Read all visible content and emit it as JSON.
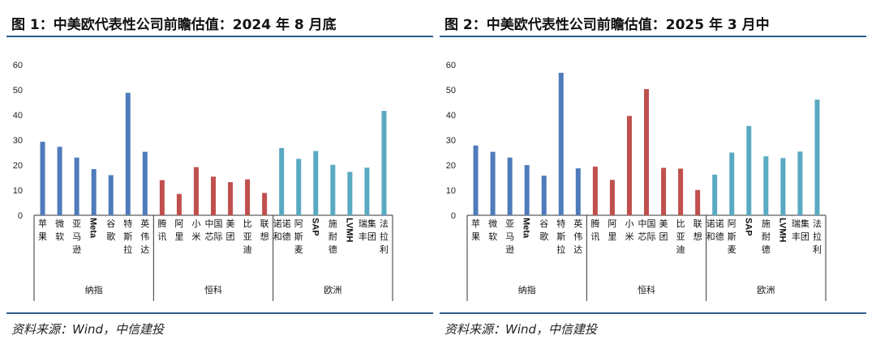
{
  "panels": [
    {
      "title": "图 1：中美欧代表性公司前瞻估值：2024 年 8 月底",
      "source": "资料来源：Wind，中信建投"
    },
    {
      "title": "图 2：中美欧代表性公司前瞻估值：2025 年 3 月中",
      "source": "资料来源：Wind，中信建投"
    }
  ],
  "chart_data": [
    {
      "type": "bar",
      "title": "图 1：中美欧代表性公司前瞻估值：2024 年 8 月底",
      "ylim": [
        0,
        60
      ],
      "yticks": [
        0,
        10,
        20,
        30,
        40,
        50,
        60
      ],
      "categories": [
        "苹果",
        "微软",
        "亚马逊",
        "Meta",
        "谷歌",
        "特斯拉",
        "英伟达",
        "腾讯",
        "阿里",
        "小米",
        "中芯国际",
        "美团",
        "比亚迪",
        "联想",
        "诺和诺德",
        "阿斯麦",
        "SAP",
        "施耐德",
        "LVMH",
        "瑞丰集团",
        "法拉利"
      ],
      "values": [
        29.3,
        27.3,
        23.0,
        18.4,
        16.0,
        48.8,
        25.3,
        14.0,
        8.5,
        19.2,
        15.4,
        13.2,
        14.3,
        8.9,
        26.8,
        22.5,
        25.6,
        20.1,
        17.3,
        19.0,
        41.6
      ],
      "groups": [
        {
          "name": "纳指",
          "start": 0,
          "end": 6
        },
        {
          "name": "恒科",
          "start": 7,
          "end": 13
        },
        {
          "name": "欧洲",
          "start": 14,
          "end": 20
        }
      ],
      "group_colors": [
        "#4f7bbb",
        "#c0504d",
        "#5aa9c3"
      ]
    },
    {
      "type": "bar",
      "title": "图 2：中美欧代表性公司前瞻估值：2025 年 3 月中",
      "ylim": [
        0,
        60
      ],
      "yticks": [
        0,
        10,
        20,
        30,
        40,
        50,
        60
      ],
      "categories": [
        "苹果",
        "微软",
        "亚马逊",
        "Meta",
        "谷歌",
        "特斯拉",
        "英伟达",
        "腾讯",
        "阿里",
        "小米",
        "中芯国际",
        "美团",
        "比亚迪",
        "联想",
        "诺和诺德",
        "阿斯麦",
        "SAP",
        "施耐德",
        "LVMH",
        "瑞丰集团",
        "法拉利"
      ],
      "values": [
        27.8,
        25.3,
        23.0,
        20.0,
        15.8,
        56.8,
        18.7,
        19.4,
        14.1,
        39.6,
        50.3,
        18.9,
        18.6,
        10.1,
        16.2,
        25.0,
        35.6,
        23.5,
        22.8,
        25.4,
        46.1
      ],
      "groups": [
        {
          "name": "纳指",
          "start": 0,
          "end": 6
        },
        {
          "name": "恒科",
          "start": 7,
          "end": 13
        },
        {
          "name": "欧洲",
          "start": 14,
          "end": 20
        }
      ],
      "group_colors": [
        "#4f7bbb",
        "#c0504d",
        "#5aa9c3"
      ]
    }
  ]
}
